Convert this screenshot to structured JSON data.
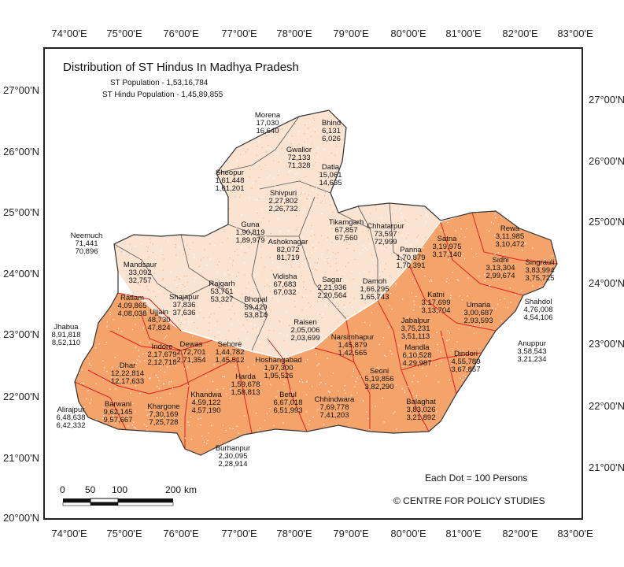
{
  "map": {
    "title": "Distribution of ST Hindus In Madhya Pradesh",
    "st_population": "ST Population - 1,53,16,784",
    "st_hindu_population": "ST Hindu Population - 1,45,89,855",
    "legend_note": "Each Dot = 100 Persons",
    "credit": "© CENTRE FOR POLICY STUDIES",
    "fill_color": "#f4a46a",
    "sparse_color": "#fbe3d2",
    "border_color": "#e02020",
    "scalebar": {
      "labels": [
        "0",
        "50",
        "100",
        "200"
      ],
      "unit": "km"
    }
  },
  "axes": {
    "longitudes": [
      "74°00'E",
      "75°00'E",
      "76°00'E",
      "77°00'E",
      "78°00'E",
      "79°00'E",
      "80°00'E",
      "81°00'E",
      "82°00'E",
      "83°00'E"
    ],
    "latitudes": [
      "27°00'N",
      "26°00'N",
      "25°00'N",
      "24°00'N",
      "23°00'N",
      "22°00'N",
      "21°00'N",
      "20°00'N"
    ]
  },
  "districts": [
    {
      "name": "Morena",
      "st": "17,030",
      "hindu": "16,640"
    },
    {
      "name": "Bhind",
      "st": "6,131",
      "hindu": "6,026"
    },
    {
      "name": "Gwalior",
      "st": "72,133",
      "hindu": "71,328"
    },
    {
      "name": "Datia",
      "st": "15,061",
      "hindu": "14,635"
    },
    {
      "name": "Sheopur",
      "st": "1,61,448",
      "hindu": "1,61,201"
    },
    {
      "name": "Shivpuri",
      "st": "2,27,802",
      "hindu": "2,26,732"
    },
    {
      "name": "Guna",
      "st": "1,90,819",
      "hindu": "1,89,979"
    },
    {
      "name": "Ashoknagar",
      "st": "82,072",
      "hindu": "81,719"
    },
    {
      "name": "Tikamgarh",
      "st": "67,857",
      "hindu": "67,560"
    },
    {
      "name": "Chhatarpur",
      "st": "73,597",
      "hindu": "72,999"
    },
    {
      "name": "Rewa",
      "st": "3,11,985",
      "hindu": "3,10,472"
    },
    {
      "name": "Satna",
      "st": "3,19,975",
      "hindu": "3,17,140"
    },
    {
      "name": "Panna",
      "st": "1,70,879",
      "hindu": "1,70,391"
    },
    {
      "name": "Sidhi",
      "st": "3,13,304",
      "hindu": "2,99,674"
    },
    {
      "name": "Singrauli",
      "st": "3,83,994",
      "hindu": "3,75,725"
    },
    {
      "name": "Neemuch",
      "st": "71,441",
      "hindu": "70,896"
    },
    {
      "name": "Mandsaur",
      "st": "33,092",
      "hindu": "32,757"
    },
    {
      "name": "Rajgarh",
      "st": "53,751",
      "hindu": "53,327"
    },
    {
      "name": "Vidisha",
      "st": "67,683",
      "hindu": "67,032"
    },
    {
      "name": "Sagar",
      "st": "2,21,936",
      "hindu": "2,20,564"
    },
    {
      "name": "Damoh",
      "st": "1,66,295",
      "hindu": "1,65,743"
    },
    {
      "name": "Katni",
      "st": "3,17,699",
      "hindu": "3,13,704"
    },
    {
      "name": "Umaria",
      "st": "3,00,687",
      "hindu": "2,93,593"
    },
    {
      "name": "Shahdol",
      "st": "4,76,008",
      "hindu": "4,54,106"
    },
    {
      "name": "Ratlam",
      "st": "4,09,865",
      "hindu": "4,08,038"
    },
    {
      "name": "Shajapur",
      "st": "37,836",
      "hindu": "37,636"
    },
    {
      "name": "Ujjain",
      "st": "48,730",
      "hindu": "47,824"
    },
    {
      "name": "Bhopal",
      "st": "59,429",
      "hindu": "53,814"
    },
    {
      "name": "Raisen",
      "st": "2,05,006",
      "hindu": "2,03,699"
    },
    {
      "name": "Jabalpur",
      "st": "3,75,231",
      "hindu": "3,51,113"
    },
    {
      "name": "Jhabua",
      "st": "8,91,818",
      "hindu": "8,52,110"
    },
    {
      "name": "Indore",
      "st": "2,17,679",
      "hindu": "2,12,718"
    },
    {
      "name": "Dewas",
      "st": "2,72,701",
      "hindu": "2,71,354"
    },
    {
      "name": "Sehore",
      "st": "1,44,782",
      "hindu": "1,45,512"
    },
    {
      "name": "Narsimhapur",
      "st": "1,45,879",
      "hindu": "1,42,565"
    },
    {
      "name": "Mandla",
      "st": "6,10,528",
      "hindu": "4,29,987"
    },
    {
      "name": "Dindori",
      "st": "4,55,789",
      "hindu": "3,67,857"
    },
    {
      "name": "Anuppur",
      "st": "3,58,543",
      "hindu": "3,21,234"
    },
    {
      "name": "Dhar",
      "st": "12,22,814",
      "hindu": "12,17,633"
    },
    {
      "name": "Hoshangabad",
      "st": "1,97,300",
      "hindu": "1,95,526"
    },
    {
      "name": "Harda",
      "st": "1,59,678",
      "hindu": "1,58,813"
    },
    {
      "name": "Seoni",
      "st": "5,19,856",
      "hindu": "3,82,290"
    },
    {
      "name": "Barwani",
      "st": "9,62,145",
      "hindu": "9,57,667"
    },
    {
      "name": "Khargone",
      "st": "7,30,169",
      "hindu": "7,25,728"
    },
    {
      "name": "Khandwa",
      "st": "4,59,122",
      "hindu": "4,57,190"
    },
    {
      "name": "Betul",
      "st": "6,67,018",
      "hindu": "6,51,993"
    },
    {
      "name": "Chhindwara",
      "st": "7,69,778",
      "hindu": "7,41,203"
    },
    {
      "name": "Balaghat",
      "st": "3,83,026",
      "hindu": "3,21,892"
    },
    {
      "name": "Alirajpur",
      "st": "6,48,638",
      "hindu": "6,42,332"
    },
    {
      "name": "Burhanpur",
      "st": "2,30,095",
      "hindu": "2,28,914"
    }
  ]
}
